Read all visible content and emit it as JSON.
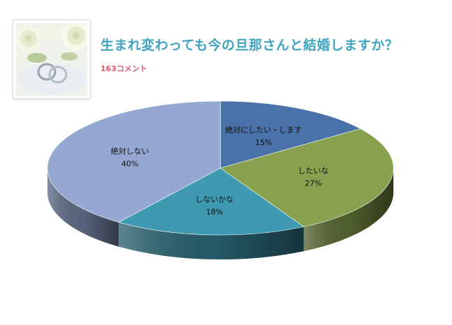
{
  "header": {
    "title": "生まれ変わっても今の旦那さんと結婚しますか？",
    "comments": "163コメント"
  },
  "colors": {
    "title": "#3fa3bf",
    "comments": "#e05a6a"
  },
  "chart_data": {
    "type": "pie",
    "style": "3d",
    "title": "",
    "slices": [
      {
        "label": "絶対にしたい・します",
        "value": 15,
        "pct_label": "15%",
        "color": "#4a72a8"
      },
      {
        "label": "したいな",
        "value": 27,
        "pct_label": "27%",
        "color": "#87a14e"
      },
      {
        "label": "しないかな",
        "value": 18,
        "pct_label": "18%",
        "color": "#3f99b0"
      },
      {
        "label": "絶対しない",
        "value": 40,
        "pct_label": "40%",
        "color": "#95a8d1"
      }
    ]
  }
}
